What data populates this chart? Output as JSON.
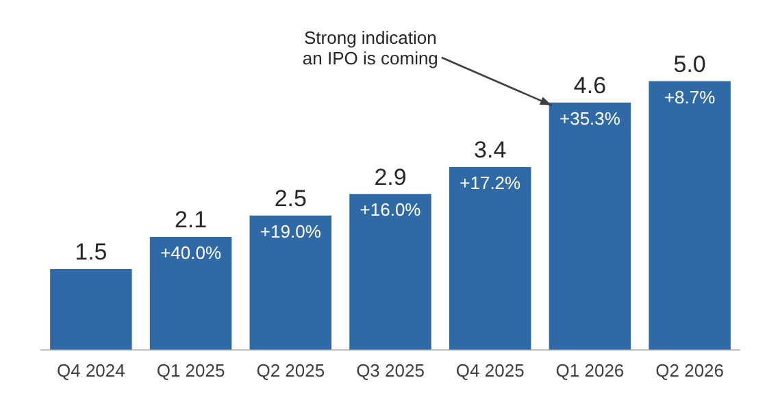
{
  "chart_data": {
    "type": "bar",
    "categories": [
      "Q4 2024",
      "Q1 2025",
      "Q2 2025",
      "Q3 2025",
      "Q4 2025",
      "Q1 2026",
      "Q2 2026"
    ],
    "values": [
      1.5,
      2.1,
      2.5,
      2.9,
      3.4,
      4.6,
      5.0
    ],
    "value_labels": [
      "1.5",
      "2.1",
      "2.5",
      "2.9",
      "3.4",
      "4.6",
      "5.0"
    ],
    "color": "#2f6aa6",
    "annotations": [
      {
        "text": "+40.0%",
        "x": "Q1 2025",
        "y": 2.1
      },
      {
        "text": "+19.0%",
        "x": "Q2 2025",
        "y": 2.5
      },
      {
        "text": "+16.0%",
        "x": "Q3 2025",
        "y": 2.9
      },
      {
        "text": "+17.2%",
        "x": "Q4 2025",
        "y": 3.4
      },
      {
        "text": "+35.3%",
        "x": "Q1 2026",
        "y": 4.6
      },
      {
        "text": "+8.7%",
        "x": "Q2 2026",
        "y": 5.0
      },
      "Strong indication\nan IPO is coming"
    ],
    "grid": false,
    "legend": false,
    "tick_labels": "x"
  }
}
